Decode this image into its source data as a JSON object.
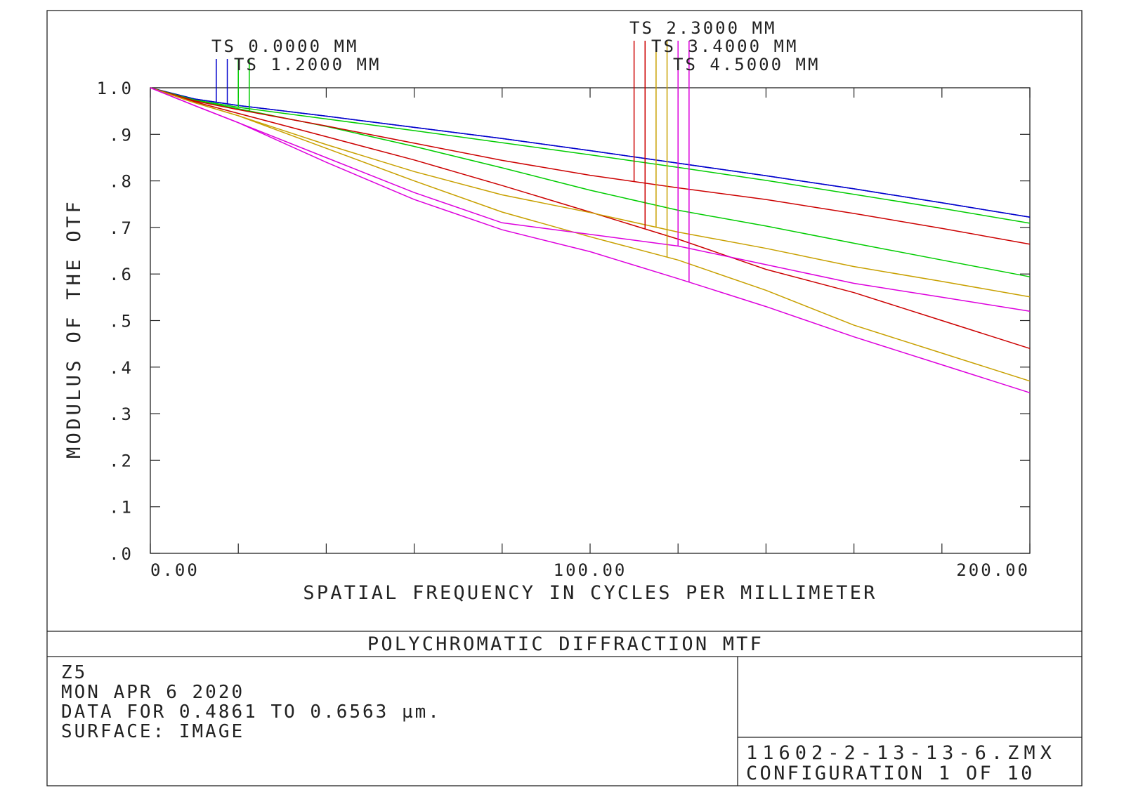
{
  "chart_data": {
    "type": "line",
    "title": "POLYCHROMATIC DIFFRACTION MTF",
    "xlabel": "SPATIAL FREQUENCY IN CYCLES PER MILLIMETER",
    "ylabel": "MODULUS OF THE OTF",
    "xlim": [
      0,
      200
    ],
    "ylim": [
      0,
      1.0
    ],
    "x_tick_labels": [
      {
        "value": 0,
        "label": "0.00"
      },
      {
        "value": 100,
        "label": "100.00"
      },
      {
        "value": 200,
        "label": "200.00"
      }
    ],
    "x_minor_ticks": [
      20,
      40,
      60,
      80,
      120,
      140,
      160,
      180
    ],
    "y_tick_labels": [
      {
        "value": 1.0,
        "label": "1.0"
      },
      {
        "value": 0.9,
        "label": ".9"
      },
      {
        "value": 0.8,
        "label": ".8"
      },
      {
        "value": 0.7,
        "label": ".7"
      },
      {
        "value": 0.6,
        "label": ".6"
      },
      {
        "value": 0.5,
        "label": ".5"
      },
      {
        "value": 0.4,
        "label": ".4"
      },
      {
        "value": 0.3,
        "label": ".3"
      },
      {
        "value": 0.2,
        "label": ".2"
      },
      {
        "value": 0.1,
        "label": ".1"
      },
      {
        "value": 0.0,
        "label": ".0"
      }
    ],
    "x": [
      0,
      10,
      20,
      40,
      60,
      80,
      100,
      120,
      140,
      160,
      180,
      200
    ],
    "fields": [
      {
        "name": "TS 0.0000 MM",
        "color": "#0000cc",
        "series": [
          {
            "kind": "T",
            "values": [
              1.0,
              0.976,
              0.962,
              0.939,
              0.915,
              0.891,
              0.865,
              0.838,
              0.811,
              0.783,
              0.753,
              0.722
            ],
            "marker_x": 15
          },
          {
            "kind": "S",
            "values": [
              1.0,
              0.976,
              0.962,
              0.939,
              0.915,
              0.891,
              0.865,
              0.838,
              0.811,
              0.783,
              0.753,
              0.722
            ],
            "marker_x": 17.5
          }
        ]
      },
      {
        "name": "TS 1.2000 MM",
        "color": "#00cc00",
        "series": [
          {
            "kind": "T",
            "values": [
              1.0,
              0.974,
              0.958,
              0.933,
              0.908,
              0.882,
              0.856,
              0.829,
              0.801,
              0.771,
              0.741,
              0.709
            ],
            "marker_x": 20
          },
          {
            "kind": "S",
            "values": [
              1.0,
              0.973,
              0.955,
              0.917,
              0.874,
              0.828,
              0.78,
              0.737,
              0.703,
              0.666,
              0.63,
              0.594
            ],
            "marker_x": 22.5
          }
        ]
      },
      {
        "name": "TS 2.3000 MM",
        "color": "#cc0000",
        "series": [
          {
            "kind": "T",
            "values": [
              1.0,
              0.972,
              0.953,
              0.918,
              0.881,
              0.844,
              0.812,
              0.785,
              0.76,
              0.73,
              0.698,
              0.664
            ],
            "marker_x": 110
          },
          {
            "kind": "S",
            "values": [
              1.0,
              0.97,
              0.945,
              0.895,
              0.845,
              0.79,
              0.733,
              0.675,
              0.61,
              0.56,
              0.5,
              0.44
            ],
            "marker_x": 112.5
          }
        ]
      },
      {
        "name": "TS 3.4000 MM",
        "color": "#c8a000",
        "series": [
          {
            "kind": "T",
            "values": [
              1.0,
              0.968,
              0.94,
              0.878,
              0.82,
              0.77,
              0.732,
              0.69,
              0.655,
              0.616,
              0.584,
              0.551
            ],
            "marker_x": 115
          },
          {
            "kind": "S",
            "values": [
              1.0,
              0.968,
              0.94,
              0.87,
              0.8,
              0.733,
              0.68,
              0.63,
              0.565,
              0.49,
              0.43,
              0.37
            ],
            "marker_x": 117.5
          }
        ]
      },
      {
        "name": "TS 4.5000 MM",
        "color": "#dd00dd",
        "series": [
          {
            "kind": "T",
            "values": [
              1.0,
              0.962,
              0.925,
              0.85,
              0.775,
              0.71,
              0.685,
              0.66,
              0.62,
              0.58,
              0.55,
              0.52
            ],
            "marker_x": 120
          },
          {
            "kind": "S",
            "values": [
              1.0,
              0.962,
              0.925,
              0.84,
              0.76,
              0.695,
              0.648,
              0.59,
              0.53,
              0.465,
              0.405,
              0.345
            ],
            "marker_x": 122.5
          }
        ]
      }
    ]
  },
  "info": {
    "lens_name": "Z5",
    "date": "MON APR 6 2020",
    "wavelength": "DATA FOR 0.4861 TO 0.6563 µm.",
    "surface": "SURFACE: IMAGE",
    "file_name": "11602-2-13-13-6.ZMX",
    "configuration": "CONFIGURATION 1 OF 10"
  }
}
